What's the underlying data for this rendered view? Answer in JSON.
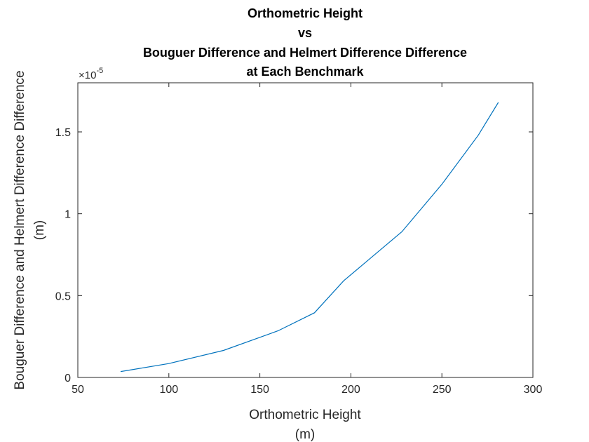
{
  "chart_data": {
    "type": "line",
    "title": [
      "Orthometric Height",
      "vs",
      "Bouguer Difference and Helmert Difference Difference",
      "at Each Benchmark"
    ],
    "xlabel": [
      "Orthometric Height",
      "(m)"
    ],
    "ylabel": [
      "Bouguer Difference and Helmert Difference Difference",
      "(m)"
    ],
    "xlim": [
      50,
      300
    ],
    "ylim": [
      0,
      1.8e-05
    ],
    "xticks": [
      50,
      100,
      150,
      200,
      250,
      300
    ],
    "xtick_labels": [
      "50",
      "100",
      "150",
      "200",
      "250",
      "300"
    ],
    "yticks": [
      0,
      5e-06,
      1e-05,
      1.5e-05
    ],
    "ytick_labels": [
      "0",
      "0.5",
      "1",
      "1.5"
    ],
    "y_exponent": {
      "base": "×10",
      "power": "-5"
    },
    "grid": false,
    "series": [
      {
        "color": "#0072BD",
        "x": [
          73.5,
          100,
          130,
          160,
          180,
          196,
          212,
          228,
          250,
          270,
          281
        ],
        "y": [
          3.6e-07,
          8.5e-07,
          1.65e-06,
          2.85e-06,
          3.95e-06,
          5.9e-06,
          7.4e-06,
          8.9e-06,
          1.18e-05,
          1.48e-05,
          1.68e-05
        ]
      }
    ]
  }
}
